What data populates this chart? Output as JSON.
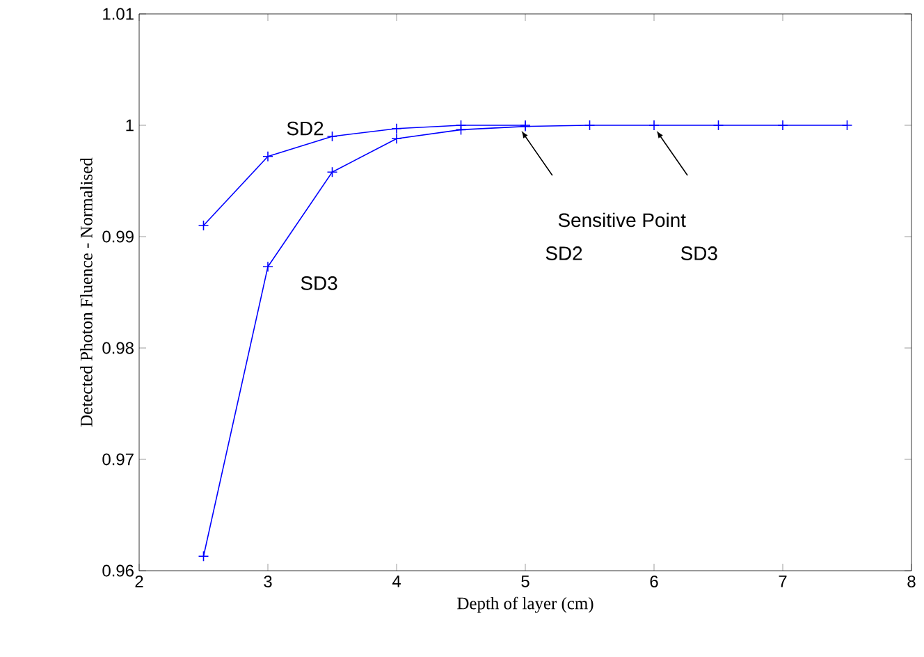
{
  "chart_data": {
    "type": "line",
    "xlabel": "Depth of layer (cm)",
    "ylabel": "Detected Photon Fluence - Normalised",
    "series": [
      {
        "name": "SD2",
        "color": "#0000ff",
        "x": [
          2.5,
          3,
          3.5,
          4,
          4.5,
          5
        ],
        "values": [
          0.991,
          0.9972,
          0.999,
          0.9997,
          1.0,
          1.0
        ]
      },
      {
        "name": "SD3",
        "color": "#0000ff",
        "x": [
          2.5,
          3,
          3.5,
          4,
          4.5,
          5,
          5.5,
          6,
          6.5,
          7,
          7.5
        ],
        "values": [
          0.9613,
          0.9873,
          0.9958,
          0.9988,
          0.9996,
          0.9999,
          1.0,
          1.0,
          1.0,
          1.0,
          1.0
        ]
      }
    ],
    "annotations": [
      "Sensitive Point",
      "SD2",
      "SD3"
    ],
    "xlim": [
      2,
      8
    ],
    "ylim": [
      0.96,
      1.01
    ],
    "xticks": [
      2,
      3,
      4,
      5,
      6,
      7,
      8
    ],
    "yticks": [
      0.96,
      0.97,
      0.98,
      0.99,
      {
        "value": 1.0,
        "label": "1"
      },
      1.01
    ],
    "marker": "cross",
    "line_style": "solid",
    "grid": false
  }
}
